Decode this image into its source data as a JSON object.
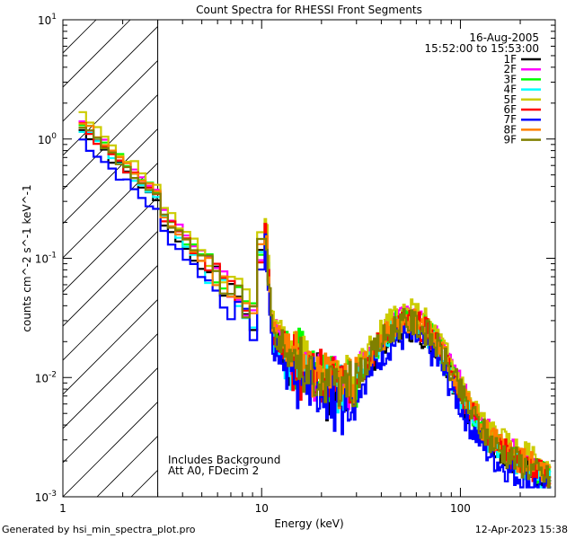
{
  "chart_data": {
    "type": "line",
    "title": "Count Spectra for RHESSI Front Segments",
    "xlabel": "Energy (keV)",
    "ylabel": "counts cm^-2 s^-1 keV^-1",
    "xscale": "log",
    "yscale": "log",
    "xlim": [
      1,
      300
    ],
    "ylim": [
      0.001,
      10
    ],
    "x_ticks": [
      {
        "value": 1,
        "label": "1"
      },
      {
        "value": 10,
        "label": "10"
      },
      {
        "value": 100,
        "label": "100"
      }
    ],
    "y_ticks": [
      {
        "value": 0.001,
        "label": "10",
        "exp": "-3"
      },
      {
        "value": 0.01,
        "label": "10",
        "exp": "-2"
      },
      {
        "value": 0.1,
        "label": "10",
        "exp": "-1"
      },
      {
        "value": 1,
        "label": "10",
        "exp": "0"
      },
      {
        "value": 10,
        "label": "10",
        "exp": "1"
      }
    ],
    "shaded_region": {
      "from": 1,
      "to": 3
    },
    "legend_header": [
      "16-Aug-2005",
      "15:52:00 to 15:53:00"
    ],
    "annotations": [
      "Includes Background",
      "Att A0, FDecim 2"
    ],
    "series": [
      {
        "name": "1F",
        "color": "#000000",
        "scale": 0.9,
        "seed": 1
      },
      {
        "name": "2F",
        "color": "#ff00ff",
        "scale": 1.1,
        "seed": 2
      },
      {
        "name": "3F",
        "color": "#00ff00",
        "scale": 1.05,
        "seed": 3
      },
      {
        "name": "4F",
        "color": "#00ffff",
        "scale": 0.95,
        "seed": 4
      },
      {
        "name": "5F",
        "color": "#cccc00",
        "scale": 1.2,
        "seed": 5
      },
      {
        "name": "6F",
        "color": "#ff0000",
        "scale": 1.0,
        "seed": 6
      },
      {
        "name": "7F",
        "color": "#0000ff",
        "scale": 0.75,
        "seed": 7
      },
      {
        "name": "8F",
        "color": "#ff8000",
        "scale": 1.05,
        "seed": 8
      },
      {
        "name": "9F",
        "color": "#808000",
        "scale": 1.0,
        "seed": 9
      }
    ]
  },
  "footer": {
    "generated": "Generated by hsi_min_spectra_plot.pro",
    "date": "12-Apr-2023 15:38"
  }
}
